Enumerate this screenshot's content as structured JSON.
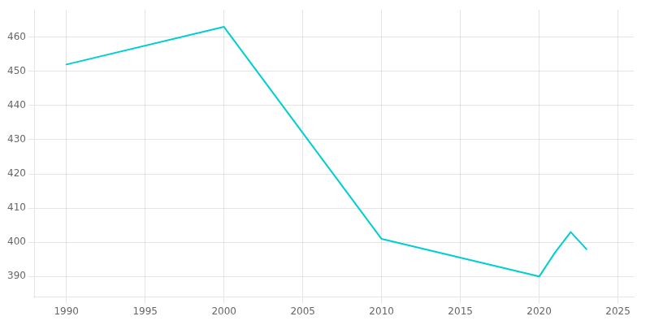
{
  "chart_data": {
    "type": "line",
    "x": [
      1990,
      2000,
      2010,
      2020,
      2021,
      2022,
      2023
    ],
    "values": [
      452,
      463,
      401,
      390,
      397,
      403,
      398
    ],
    "color": "#00CED1",
    "xlim": [
      1988,
      2026
    ],
    "ylim": [
      384,
      468
    ],
    "xticks": [
      1990,
      1995,
      2000,
      2005,
      2010,
      2015,
      2020,
      2025
    ],
    "yticks": [
      390,
      400,
      410,
      420,
      430,
      440,
      450,
      460
    ],
    "grid": true
  }
}
